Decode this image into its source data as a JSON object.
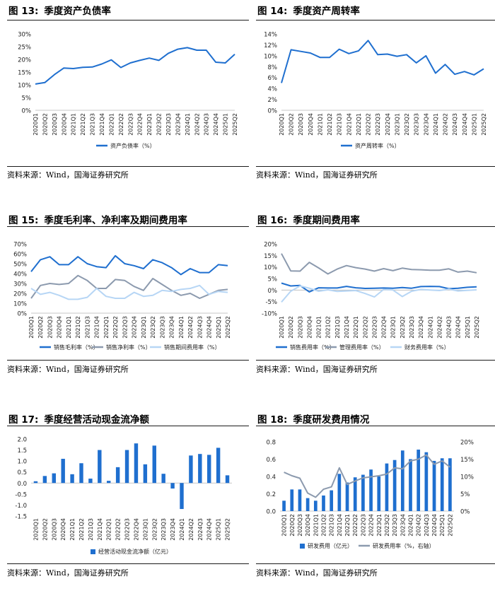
{
  "source_text": "资料来源：Wind，国海证券研究所",
  "colors": {
    "blue": "#1f6fcf",
    "grey": "#8c9aae",
    "light": "#b7d6f5"
  },
  "quarters": [
    "2020Q1",
    "2020Q2",
    "2020Q3",
    "2020Q4",
    "2021Q1",
    "2021Q2",
    "2021Q3",
    "2021Q4",
    "2022Q1",
    "2022Q2",
    "2022Q3",
    "2022Q4",
    "2023Q1",
    "2023Q2",
    "2023Q3",
    "2023Q4",
    "2024Q1",
    "2024Q2",
    "2024Q3",
    "2024Q4",
    "2025Q1",
    "2025Q2"
  ],
  "chart_data": [
    {
      "id": "fig13",
      "num": "图 13:",
      "title": "季度资产负债率",
      "type": "line",
      "ylim": [
        0,
        30
      ],
      "yticks": [
        0,
        5,
        10,
        15,
        20,
        25,
        30
      ],
      "ytick_suffix": "%",
      "series": [
        {
          "name": "资产负债率（%）",
          "color": "#1f6fcf",
          "values": [
            10.3,
            10.9,
            14.0,
            16.6,
            16.4,
            16.9,
            17.0,
            18.2,
            19.8,
            16.8,
            18.6,
            19.6,
            20.5,
            19.6,
            22.4,
            24.0,
            24.6,
            23.6,
            23.6,
            18.9,
            18.6,
            22.0
          ]
        }
      ]
    },
    {
      "id": "fig14",
      "num": "图 14:",
      "title": "季度资产周转率",
      "type": "line",
      "ylim": [
        0,
        14
      ],
      "yticks": [
        0,
        2,
        4,
        6,
        8,
        10,
        12,
        14
      ],
      "ytick_suffix": "%",
      "series": [
        {
          "name": "资产周转率（%）",
          "color": "#1f6fcf",
          "values": [
            5.0,
            11.1,
            10.8,
            10.5,
            9.7,
            9.7,
            11.2,
            10.4,
            10.9,
            12.8,
            10.2,
            10.3,
            9.9,
            10.2,
            8.7,
            10.0,
            6.8,
            8.4,
            6.6,
            7.1,
            6.5,
            7.6
          ]
        }
      ]
    },
    {
      "id": "fig15",
      "num": "图 15:",
      "title": "季度毛利率、净利率及期间费用率",
      "type": "line",
      "ylim": [
        0,
        70
      ],
      "yticks": [
        0,
        10,
        20,
        30,
        40,
        50,
        60,
        70
      ],
      "ytick_suffix": "%",
      "series": [
        {
          "name": "销售毛利率（%）",
          "color": "#1f6fcf",
          "values": [
            42,
            54,
            57,
            49,
            49,
            57,
            50,
            47,
            46,
            58,
            50,
            48,
            45,
            54,
            51,
            46,
            39,
            45,
            41,
            41,
            49,
            48
          ]
        },
        {
          "name": "销售净利率（%）",
          "color": "#8c9aae",
          "values": [
            15,
            28,
            30,
            29,
            30,
            38,
            33,
            25,
            25,
            34,
            33,
            27,
            23,
            35,
            29,
            23,
            18,
            20,
            15,
            19,
            23,
            24
          ]
        },
        {
          "name": "销售期间费用率（%）",
          "color": "#b7d6f5",
          "values": [
            25,
            19,
            21,
            18,
            14,
            14,
            16,
            25,
            17,
            15,
            15,
            21,
            17,
            18,
            23,
            22,
            24,
            25,
            28,
            19,
            22,
            21
          ]
        }
      ]
    },
    {
      "id": "fig16",
      "num": "图 16:",
      "title": "季度期间费用率",
      "type": "line",
      "ylim": [
        -10,
        20
      ],
      "yticks": [
        -10,
        -5,
        0,
        5,
        10,
        15,
        20
      ],
      "ytick_suffix": "%",
      "series": [
        {
          "name": "销售费用率（%）",
          "color": "#1f6fcf",
          "values": [
            3.0,
            1.8,
            2.0,
            -0.8,
            1.0,
            0.9,
            0.9,
            1.6,
            1.0,
            0.7,
            0.8,
            0.9,
            0.8,
            1.1,
            0.8,
            1.5,
            1.6,
            1.5,
            0.6,
            0.8,
            1.2,
            1.4
          ]
        },
        {
          "name": "管理费用率（%）",
          "color": "#8c9aae",
          "values": [
            15.8,
            8.3,
            8.2,
            12.0,
            9.6,
            7.0,
            9.1,
            10.6,
            9.7,
            9.1,
            8.2,
            9.3,
            8.4,
            9.5,
            8.9,
            8.8,
            8.6,
            8.6,
            9.2,
            7.8,
            8.2,
            7.5
          ]
        },
        {
          "name": "财务费用率（%）",
          "color": "#b7d6f5",
          "values": [
            -5.2,
            -0.5,
            1.8,
            0.8,
            -0.5,
            0.1,
            -0.6,
            -0.4,
            -0.2,
            -1.5,
            -3.0,
            0.3,
            0.0,
            -2.8,
            -0.5,
            0.3,
            0.0,
            -0.2,
            0.4,
            -0.4,
            -0.1,
            0.1
          ]
        }
      ]
    },
    {
      "id": "fig17",
      "num": "图 17:",
      "title": "季度经营活动现金流净额",
      "type": "bar",
      "ylim": [
        -1.5,
        2.0
      ],
      "yticks": [
        -1.5,
        -1.0,
        -0.5,
        0.0,
        0.5,
        1.0,
        1.5,
        2.0
      ],
      "ytick_suffix": "",
      "series": [
        {
          "name": "经营活动现金流净额（亿元）",
          "color": "#1f6fcf",
          "values": [
            0.08,
            0.32,
            0.44,
            1.1,
            0.4,
            0.9,
            0.2,
            1.5,
            0.1,
            0.72,
            1.5,
            1.8,
            0.85,
            1.7,
            0.42,
            -0.25,
            -1.18,
            1.25,
            1.32,
            1.28,
            1.6,
            0.35
          ]
        }
      ]
    },
    {
      "id": "fig18",
      "num": "图 18:",
      "title": "季度研发费用情况",
      "type": "bar+line",
      "ylim": [
        0,
        0.8
      ],
      "yticks": [
        0,
        0.2,
        0.4,
        0.6,
        0.8
      ],
      "ytick_suffix": "",
      "y2lim": [
        0,
        20
      ],
      "y2ticks": [
        0,
        5,
        10,
        15,
        20
      ],
      "y2tick_suffix": "%",
      "series": [
        {
          "name": "研发费用（亿元）",
          "type": "bar",
          "color": "#1f6fcf",
          "values": [
            0.12,
            0.25,
            0.25,
            0.15,
            0.12,
            0.18,
            0.24,
            0.43,
            0.33,
            0.39,
            0.42,
            0.48,
            0.4,
            0.55,
            0.59,
            0.7,
            0.6,
            0.71,
            0.68,
            0.58,
            0.61,
            0.61
          ]
        },
        {
          "name": "研发费用率（%，右轴）",
          "type": "line",
          "axis": "right",
          "color": "#8c9aae",
          "values": [
            11.2,
            10.2,
            9.5,
            5.2,
            4.0,
            6.3,
            7.0,
            12.5,
            7.7,
            8.7,
            9.6,
            9.9,
            10.2,
            10.7,
            12.5,
            12.2,
            14.5,
            15.0,
            16.2,
            13.5,
            14.5,
            12.7
          ]
        }
      ]
    }
  ]
}
